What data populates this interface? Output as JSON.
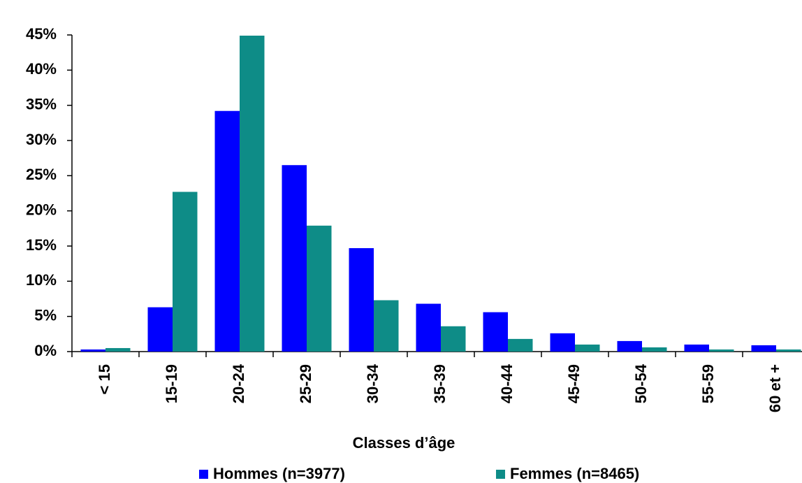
{
  "chart_data": {
    "type": "bar",
    "x_label": "Classes d’âge",
    "categories": [
      "< 15",
      "15-19",
      "20-24",
      "25-29",
      "30-34",
      "35-39",
      "40-44",
      "45-49",
      "50-54",
      "55-59",
      "60 et +"
    ],
    "series": [
      {
        "name": "Hommes (n=3977)",
        "color": "#0000ff",
        "values": [
          0.3,
          6.3,
          34.2,
          26.5,
          14.7,
          6.8,
          5.6,
          2.6,
          1.5,
          1.0,
          0.9
        ]
      },
      {
        "name": "Femmes (n=8465)",
        "color": "#0e8c87",
        "values": [
          0.5,
          22.7,
          44.9,
          17.9,
          7.3,
          3.6,
          1.8,
          1.0,
          0.6,
          0.3,
          0.3
        ]
      }
    ],
    "ylim": [
      0,
      45
    ],
    "yticks": [
      {
        "value": 0,
        "label": "0%"
      },
      {
        "value": 5,
        "label": "5%"
      },
      {
        "value": 10,
        "label": "10%"
      },
      {
        "value": 15,
        "label": "15%"
      },
      {
        "value": 20,
        "label": "20%"
      },
      {
        "value": 25,
        "label": "25%"
      },
      {
        "value": 30,
        "label": "30%"
      },
      {
        "value": 35,
        "label": "35%"
      },
      {
        "value": 40,
        "label": "40%"
      },
      {
        "value": 45,
        "label": "45%"
      }
    ],
    "grid": false,
    "legend": "bottom"
  }
}
